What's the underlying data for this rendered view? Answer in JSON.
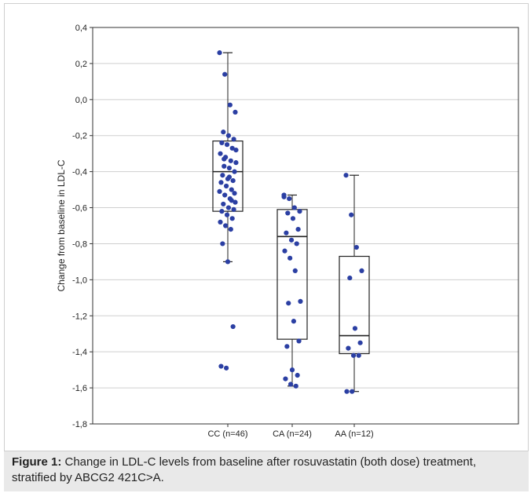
{
  "chart_data": {
    "type": "box",
    "ylabel": "Change from baseline in LDL-C",
    "ylim": [
      -1.8,
      0.4
    ],
    "yticks": [
      0.4,
      0.2,
      0.0,
      -0.2,
      -0.4,
      -0.6,
      -0.8,
      -1.0,
      -1.2,
      -1.4,
      -1.6,
      -1.8
    ],
    "ytick_labels": [
      "0,4",
      "0,2",
      "0,0",
      "-0,2",
      "-0,4",
      "-0,6",
      "-0,8",
      "-1,0",
      "-1,2",
      "-1,4",
      "-1,6",
      "-1,8"
    ],
    "categories": [
      "CC (n=46)",
      "CA (n=24)",
      "AA (n=12)"
    ],
    "grid": true,
    "point_color": "#2b3fa3",
    "boxes": [
      {
        "category": "CC (n=46)",
        "whisker_high": 0.26,
        "q3": -0.23,
        "median": -0.4,
        "q1": -0.62,
        "whisker_low": -0.9,
        "points": [
          0.26,
          0.14,
          -0.03,
          -0.07,
          -0.18,
          -0.2,
          -0.22,
          -0.24,
          -0.25,
          -0.27,
          -0.3,
          -0.32,
          -0.34,
          -0.35,
          -0.37,
          -0.38,
          -0.4,
          -0.42,
          -0.44,
          -0.45,
          -0.46,
          -0.48,
          -0.5,
          -0.51,
          -0.53,
          -0.55,
          -0.57,
          -0.58,
          -0.6,
          -0.61,
          -0.62,
          -0.64,
          -0.66,
          -0.68,
          -0.7,
          -0.72,
          -0.28,
          -0.33,
          -0.43,
          -0.52,
          -0.8,
          -0.9,
          -1.26,
          -1.48,
          -1.49,
          -0.56
        ]
      },
      {
        "category": "CA (n=24)",
        "whisker_high": -0.53,
        "q3": -0.61,
        "median": -0.76,
        "q1": -1.33,
        "whisker_low": -1.59,
        "points": [
          -0.53,
          -0.55,
          -0.6,
          -0.62,
          -0.63,
          -0.66,
          -0.72,
          -0.74,
          -0.78,
          -0.8,
          -0.84,
          -0.88,
          -0.95,
          -1.12,
          -1.13,
          -1.23,
          -1.34,
          -1.37,
          -1.5,
          -1.53,
          -1.55,
          -1.58,
          -1.59,
          -0.54
        ]
      },
      {
        "category": "AA (n=12)",
        "whisker_high": -0.42,
        "q3": -0.87,
        "median": -1.31,
        "q1": -1.41,
        "whisker_low": -1.62,
        "points": [
          -0.42,
          -0.64,
          -0.82,
          -0.95,
          -0.99,
          -1.27,
          -1.35,
          -1.38,
          -1.42,
          -1.42,
          -1.62,
          -1.62
        ]
      }
    ]
  },
  "caption": {
    "label": "Figure 1:",
    "text": " Change in LDL-C levels from baseline after rosuvastatin (both dose) treatment, stratified by ABCG2 421C>A."
  }
}
